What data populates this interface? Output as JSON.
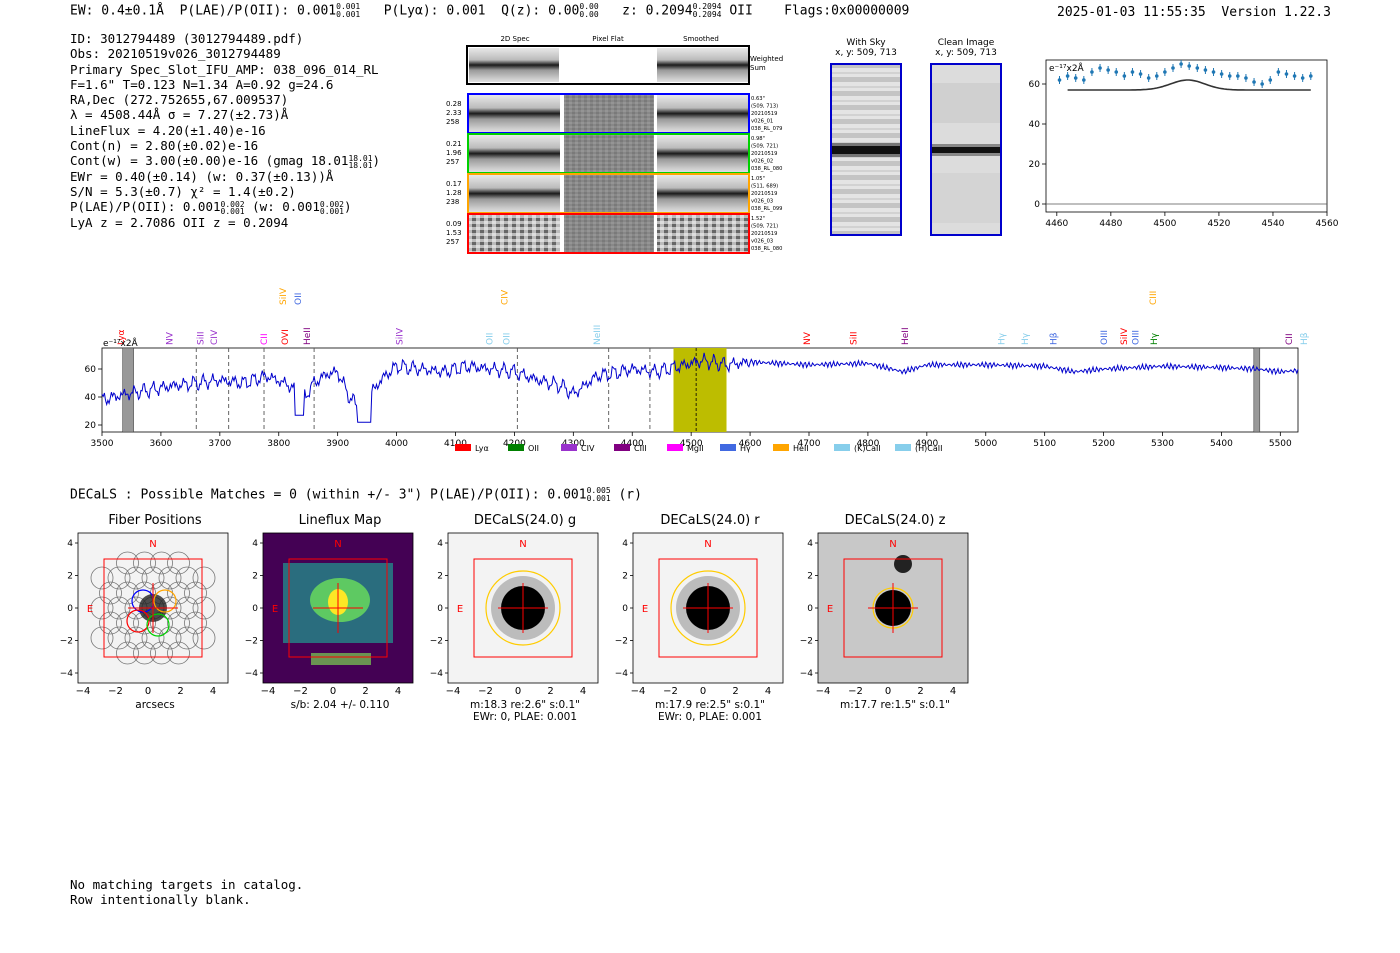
{
  "header": {
    "ew": "EW: 0.4±0.1Å",
    "plae": "P(LAE)/P(OII): 0.001",
    "plae_hi": "0.001",
    "plae_lo": "0.001",
    "plya": "P(Lyα): 0.001",
    "qz": "Q(z): 0.00",
    "qz_hi": "0.00",
    "qz_lo": "0.00",
    "z": "z: 0.2094",
    "z_hi": "0.2094",
    "z_lo": "0.2094",
    "z_line": "OII",
    "flags": "Flags:0x00000009",
    "timestamp": "2025-01-03 11:55:35",
    "version": "Version 1.22.3"
  },
  "info": {
    "id": "ID: 3012794489 (3012794489.pdf)",
    "obs": "Obs: 20210519v026_3012794489",
    "primary": "Primary Spec_Slot_IFU_AMP: 038_096_014_RL",
    "fparams": "F=1.6\"  T=0.123  N=1.34  A=0.92  g=24.6",
    "radec": "RA,Dec (272.752655,67.009537)",
    "lambda": "λ = 4508.44Å  σ = 7.27(±2.73)Å",
    "lineflux": "LineFlux = 4.20(±1.40)e-16",
    "contn": "Cont(n) = 2.80(±0.02)e-16",
    "contw": "Cont(w) = 3.00(±0.00)e-16 (gmag 18.01",
    "contw_hi": "18.01",
    "contw_lo": "18.01",
    "contw_end": ")",
    "ewr": "EWr = 0.40(±0.14) (w: 0.37(±0.13))Å",
    "sn": "S/N = 5.3(±0.7)  χ² = 1.4(±0.2)",
    "plae": "P(LAE)/P(OII): 0.001",
    "plae_hi": "0.002",
    "plae_lo": "0.001",
    "plae_w": "(w: 0.001",
    "plae_w_hi": "0.002",
    "plae_w_lo": "0.001",
    "plae_w_end": ")",
    "lyaz": "LyA z = 2.7086  OII z = 0.2094"
  },
  "spec2d": {
    "col_headers": [
      "2D Spec",
      "Pixel Flat",
      "Smoothed"
    ],
    "weighted_label": "Weighted Sum",
    "rows": [
      {
        "color": "#0000ff",
        "nums": [
          "0.28",
          "2.33",
          "258"
        ],
        "meta": [
          "0.63\"",
          "(509, 713)",
          "20210519",
          "v026_01",
          "038_RL_079"
        ]
      },
      {
        "color": "#00d000",
        "nums": [
          "0.21",
          "1.96",
          "257"
        ],
        "meta": [
          "0.98\"",
          "(509, 721)",
          "20210519",
          "v026_02",
          "038_RL_080"
        ]
      },
      {
        "color": "#ffa500",
        "nums": [
          "0.17",
          "1.28",
          "238"
        ],
        "meta": [
          "1.05\"",
          "(511, 689)",
          "20210519",
          "v026_03",
          "038_RL_099"
        ]
      },
      {
        "color": "#ff0000",
        "nums": [
          "0.09",
          "1.53",
          "257"
        ],
        "meta": [
          "1.52\"",
          "(509, 721)",
          "20210519",
          "v026_03",
          "038_RL_080"
        ]
      }
    ]
  },
  "stamps": {
    "with_sky": "With Sky",
    "with_sky_xy": "x, y: 509, 713",
    "clean": "Clean Image",
    "clean_xy": "x, y: 509, 713"
  },
  "zoom_plot": {
    "ylabel": "e⁻¹⁷x2Å",
    "xticks": [
      "4460",
      "4480",
      "4500",
      "4520",
      "4540",
      "4560"
    ],
    "yticks": [
      "0",
      "20",
      "40",
      "60"
    ]
  },
  "full_spectrum": {
    "ylabel": "e⁻¹⁷x2Å",
    "xticks": [
      "3500",
      "3600",
      "3700",
      "3800",
      "3900",
      "4000",
      "4100",
      "4200",
      "4300",
      "4400",
      "4500",
      "4600",
      "4700",
      "4800",
      "4900",
      "5000",
      "5100",
      "5200",
      "5300",
      "5400",
      "5500"
    ],
    "yticks": [
      "20",
      "40",
      "60"
    ],
    "line_labels": [
      {
        "name": "Lyα",
        "color": "#ff0000"
      },
      {
        "name": "NV",
        "color": "#9932cc"
      },
      {
        "name": "SiII",
        "color": "#9932cc"
      },
      {
        "name": "CIV",
        "color": "#9932cc"
      },
      {
        "name": "CII",
        "color": "#ff00ff"
      },
      {
        "name": "SiIV",
        "color": "#ffa500"
      },
      {
        "name": "OVI",
        "color": "#ff0000"
      },
      {
        "name": "OII",
        "color": "#4169e1"
      },
      {
        "name": "HeII",
        "color": "#800080"
      },
      {
        "name": "SiIV",
        "color": "#9932cc"
      },
      {
        "name": "OII",
        "color": "#87ceeb"
      },
      {
        "name": "CIV",
        "color": "#ffa500"
      },
      {
        "name": "OII",
        "color": "#87ceeb"
      },
      {
        "name": "NeIII",
        "color": "#87ceeb"
      },
      {
        "name": "NV",
        "color": "#ff0000"
      },
      {
        "name": "SiII",
        "color": "#ff0000"
      },
      {
        "name": "HeII",
        "color": "#800080"
      },
      {
        "name": "Hγ",
        "color": "#87ceeb"
      },
      {
        "name": "Hγ",
        "color": "#87ceeb"
      },
      {
        "name": "Hβ",
        "color": "#4169e1"
      },
      {
        "name": "OIII",
        "color": "#4169e1"
      },
      {
        "name": "SiIV",
        "color": "#ff0000"
      },
      {
        "name": "OIII",
        "color": "#4169e1"
      },
      {
        "name": "Hγ",
        "color": "#008000"
      },
      {
        "name": "CIII",
        "color": "#ffa500"
      },
      {
        "name": "CII",
        "color": "#800080"
      },
      {
        "name": "Hβ",
        "color": "#87ceeb"
      }
    ],
    "legend": [
      {
        "name": "Lyα",
        "color": "#ff0000"
      },
      {
        "name": "OII",
        "color": "#008000"
      },
      {
        "name": "CIV",
        "color": "#9932cc"
      },
      {
        "name": "CIII",
        "color": "#800080"
      },
      {
        "name": "MgII",
        "color": "#ff00ff"
      },
      {
        "name": "Hγ",
        "color": "#4169e1"
      },
      {
        "name": "HeII",
        "color": "#ffa500"
      },
      {
        "name": "(K)CaII",
        "color": "#87ceeb"
      },
      {
        "name": "(H)CaII",
        "color": "#87ceeb"
      }
    ]
  },
  "decals": {
    "title": "DECaLS : Possible Matches = 0 (within +/- 3\")  P(LAE)/P(OII): 0.001",
    "plae_hi": "0.005",
    "plae_lo": "0.001",
    "plae_end": "(r)",
    "panels": [
      {
        "title": "Fiber Positions",
        "cap1": "arcsecs",
        "cap2": ""
      },
      {
        "title": "Lineflux Map",
        "cap1": "s/b: 2.04 +/- 0.110",
        "cap2": ""
      },
      {
        "title": "DECaLS(24.0) g",
        "cap1": "m:18.3  re:2.6\"  s:0.1\"",
        "cap2": "EWr: 0, PLAE: 0.001"
      },
      {
        "title": "DECaLS(24.0) r",
        "cap1": "m:17.9  re:2.5\"  s:0.1\"",
        "cap2": "EWr: 0, PLAE: 0.001"
      },
      {
        "title": "DECaLS(24.0) z",
        "cap1": "m:17.7  re:1.5\"  s:0.1\"",
        "cap2": ""
      }
    ],
    "axis_ticks": [
      "4",
      "2",
      "0",
      "−2",
      "−4"
    ],
    "x_ticks": [
      "−4",
      "−2",
      "0",
      "2",
      "4"
    ],
    "north": "N",
    "east": "E"
  },
  "footer": {
    "line1": "No matching targets in catalog.",
    "line2": "Row intentionally blank."
  },
  "chart_data": [
    {
      "type": "line",
      "title": "Full spectrum",
      "xlabel": "Wavelength (Å)",
      "ylabel": "e⁻¹⁷x2Å",
      "xlim": [
        3500,
        5530
      ],
      "ylim": [
        15,
        75
      ],
      "emission_line_wavelength": 4508.44,
      "highlight_range": [
        4470,
        4560
      ],
      "series": [
        {
          "name": "flux",
          "x": [
            3500,
            3540,
            3580,
            3620,
            3660,
            3700,
            3740,
            3780,
            3820,
            3840,
            3860,
            3880,
            3900,
            3920,
            3940,
            3960,
            3980,
            4000,
            4040,
            4080,
            4120,
            4160,
            4200,
            4240,
            4280,
            4300,
            4340,
            4380,
            4400,
            4440,
            4480,
            4500,
            4520,
            4560,
            4600,
            4700,
            4800,
            4860,
            4900,
            5000,
            5100,
            5150,
            5200,
            5250,
            5300,
            5400,
            5460,
            5500,
            5530
          ],
          "values": [
            38,
            42,
            45,
            48,
            50,
            52,
            50,
            55,
            48,
            38,
            50,
            56,
            58,
            40,
            30,
            45,
            55,
            62,
            60,
            58,
            62,
            60,
            58,
            52,
            48,
            42,
            55,
            58,
            60,
            58,
            62,
            64,
            66,
            63,
            65,
            63,
            64,
            58,
            63,
            63,
            62,
            58,
            60,
            61,
            62,
            61,
            60,
            58,
            59
          ]
        }
      ]
    },
    {
      "type": "scatter",
      "title": "Zoom on line",
      "ylabel": "e⁻¹⁷x2Å",
      "xlim": [
        4456,
        4560
      ],
      "ylim": [
        -4,
        72
      ],
      "series": [
        {
          "name": "data",
          "x": [
            4461,
            4464,
            4467,
            4470,
            4473,
            4476,
            4479,
            4482,
            4485,
            4488,
            4491,
            4494,
            4497,
            4500,
            4503,
            4506,
            4509,
            4512,
            4515,
            4518,
            4521,
            4524,
            4527,
            4530,
            4533,
            4536,
            4539,
            4542,
            4545,
            4548,
            4551,
            4554
          ],
          "values": [
            62,
            64,
            63,
            62,
            66,
            68,
            67,
            66,
            64,
            66,
            65,
            63,
            64,
            66,
            68,
            70,
            69,
            68,
            67,
            66,
            65,
            64,
            64,
            63,
            61,
            60,
            62,
            66,
            65,
            64,
            63,
            64
          ]
        },
        {
          "name": "fit",
          "x": [
            4464,
            4490,
            4500,
            4508,
            4516,
            4526,
            4554
          ],
          "values": [
            57,
            57,
            59,
            62,
            59,
            57,
            57
          ]
        }
      ]
    }
  ]
}
